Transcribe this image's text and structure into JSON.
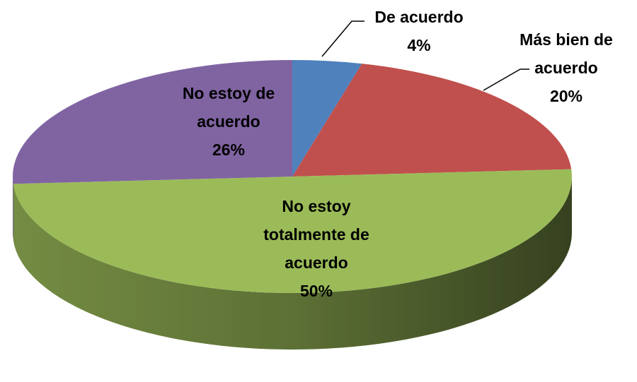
{
  "chart_data": {
    "type": "pie",
    "categories": [
      "De acuerdo",
      "Más bien de acuerdo",
      "No estoy totalmente de acuerdo",
      "No estoy de acuerdo"
    ],
    "values": [
      4,
      20,
      50,
      26
    ],
    "value_labels": [
      "4%",
      "20%",
      "50%",
      "26%"
    ],
    "colors": [
      "#4f81bd",
      "#c0504d",
      "#9bbb59",
      "#8064a2"
    ]
  }
}
